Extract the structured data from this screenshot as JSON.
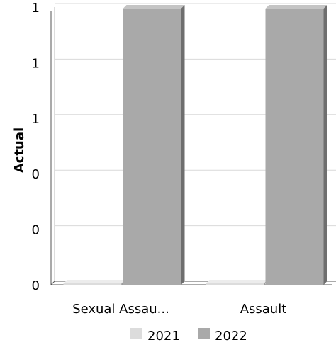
{
  "chart_data": {
    "type": "bar",
    "title": "",
    "xlabel": "",
    "ylabel": "Actual",
    "categories": [
      "Sexual Assau...",
      "Assault"
    ],
    "series": [
      {
        "name": "2021",
        "values": [
          0,
          0
        ],
        "color": "#dcdcdc"
      },
      {
        "name": "2022",
        "values": [
          1,
          1
        ],
        "color": "#a9a9a9"
      }
    ],
    "y_tick_labels": [
      "0",
      "0",
      "0",
      "1",
      "1",
      "1"
    ],
    "ylim": [
      0,
      1
    ],
    "grid": true,
    "legend_position": "bottom-center"
  }
}
